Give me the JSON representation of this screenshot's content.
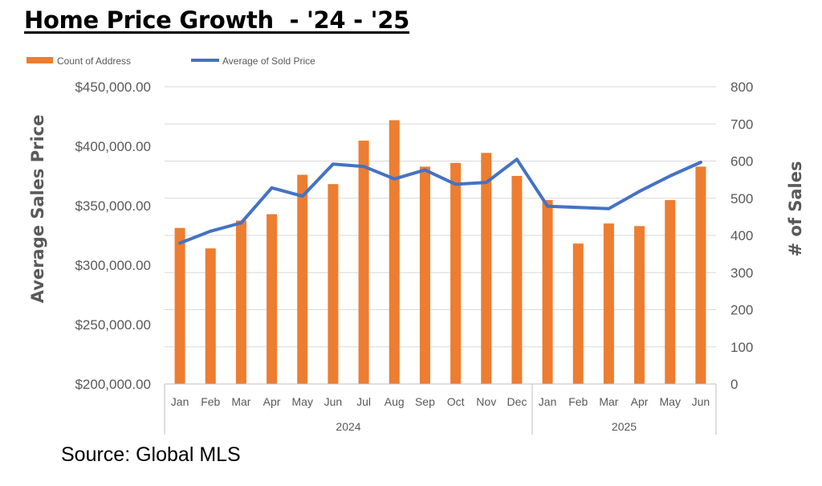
{
  "title": "Home Price Growth  - '24 - '25",
  "source": "Source: Global MLS",
  "chart_data": {
    "type": "bar+line",
    "x": [
      {
        "month": "Jan",
        "year": "2024"
      },
      {
        "month": "Feb",
        "year": "2024"
      },
      {
        "month": "Mar",
        "year": "2024"
      },
      {
        "month": "Apr",
        "year": "2024"
      },
      {
        "month": "May",
        "year": "2024"
      },
      {
        "month": "Jun",
        "year": "2024"
      },
      {
        "month": "Jul",
        "year": "2024"
      },
      {
        "month": "Aug",
        "year": "2024"
      },
      {
        "month": "Sep",
        "year": "2024"
      },
      {
        "month": "Oct",
        "year": "2024"
      },
      {
        "month": "Nov",
        "year": "2024"
      },
      {
        "month": "Dec",
        "year": "2024"
      },
      {
        "month": "Jan",
        "year": "2025"
      },
      {
        "month": "Feb",
        "year": "2025"
      },
      {
        "month": "Mar",
        "year": "2025"
      },
      {
        "month": "Apr",
        "year": "2025"
      },
      {
        "month": "May",
        "year": "2025"
      },
      {
        "month": "Jun",
        "year": "2025"
      }
    ],
    "year_groups": [
      "2024",
      "2025"
    ],
    "series": [
      {
        "name": "Count of Address",
        "type": "bar",
        "axis": "right",
        "color": "#ED7D31",
        "values": [
          420,
          365,
          440,
          457,
          563,
          538,
          655,
          710,
          585,
          595,
          622,
          560,
          495,
          378,
          432,
          425,
          495,
          585
        ]
      },
      {
        "name": "Average of Sold Price",
        "type": "line",
        "axis": "left",
        "color": "#4472C4",
        "values": [
          318500,
          328500,
          335500,
          365000,
          358000,
          385000,
          383000,
          372500,
          380000,
          368000,
          369500,
          389000,
          349500,
          348500,
          347500,
          362000,
          375000,
          386500
        ]
      }
    ],
    "left_axis": {
      "label": "Average Sales Price",
      "range": [
        200000,
        450000
      ],
      "ticks": [
        "$200,000.00",
        "$250,000.00",
        "$300,000.00",
        "$350,000.00",
        "$400,000.00",
        "$450,000.00"
      ]
    },
    "right_axis": {
      "label": "# of Sales",
      "range": [
        0,
        800
      ],
      "ticks": [
        "0",
        "100",
        "200",
        "300",
        "400",
        "500",
        "600",
        "700",
        "800"
      ]
    },
    "grid": true,
    "legend_position": "top-left"
  }
}
